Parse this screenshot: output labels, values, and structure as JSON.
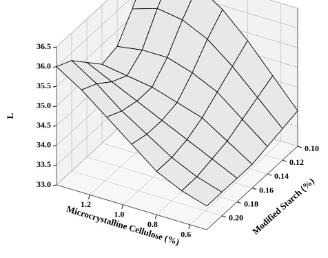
{
  "chart_data": {
    "type": "surface",
    "zlabel": "L",
    "xlabel": "Microcrystalline Cellulose (%)",
    "ylabel": "Modified Starch (%)",
    "x": [
      0.5,
      0.65,
      0.8,
      0.95,
      1.1,
      1.25,
      1.4
    ],
    "y": [
      0.1,
      0.12,
      0.14,
      0.16,
      0.18,
      0.2,
      0.22
    ],
    "z": [
      [
        33.9,
        34.6,
        35.3,
        35.9,
        36.3,
        36.5,
        36.4
      ],
      [
        33.8,
        34.4,
        35.0,
        35.5,
        35.8,
        35.9,
        35.7
      ],
      [
        33.7,
        34.2,
        34.7,
        35.0,
        35.2,
        35.2,
        35.1
      ],
      [
        33.6,
        34.0,
        34.4,
        34.6,
        34.8,
        34.9,
        35.0
      ],
      [
        33.6,
        33.9,
        34.2,
        34.5,
        34.8,
        35.1,
        35.4
      ],
      [
        33.6,
        33.8,
        34.1,
        34.5,
        34.9,
        35.4,
        35.8
      ],
      [
        33.6,
        33.8,
        34.1,
        34.6,
        35.1,
        35.6,
        36.0
      ]
    ],
    "xlim": [
      0.5,
      1.4
    ],
    "xticks": [
      0.6,
      0.8,
      {
        "value": 1.0,
        "label": "1.0"
      },
      1.2
    ],
    "ylim": [
      0.1,
      0.22
    ],
    "yticks": [
      {
        "value": 0.1,
        "label": "0.10"
      },
      0.12,
      0.14,
      0.16,
      0.18,
      {
        "value": 0.2,
        "label": "0.20"
      }
    ],
    "zlim": [
      33,
      36.5
    ],
    "zticks": [
      {
        "value": 33,
        "label": "33.0"
      },
      33.5,
      {
        "value": 34,
        "label": "34.0"
      },
      34.5,
      {
        "value": 35,
        "label": "35.0"
      },
      35.5,
      {
        "value": 36,
        "label": "36.0"
      },
      36.5
    ],
    "grid": true,
    "color": "#000000"
  }
}
